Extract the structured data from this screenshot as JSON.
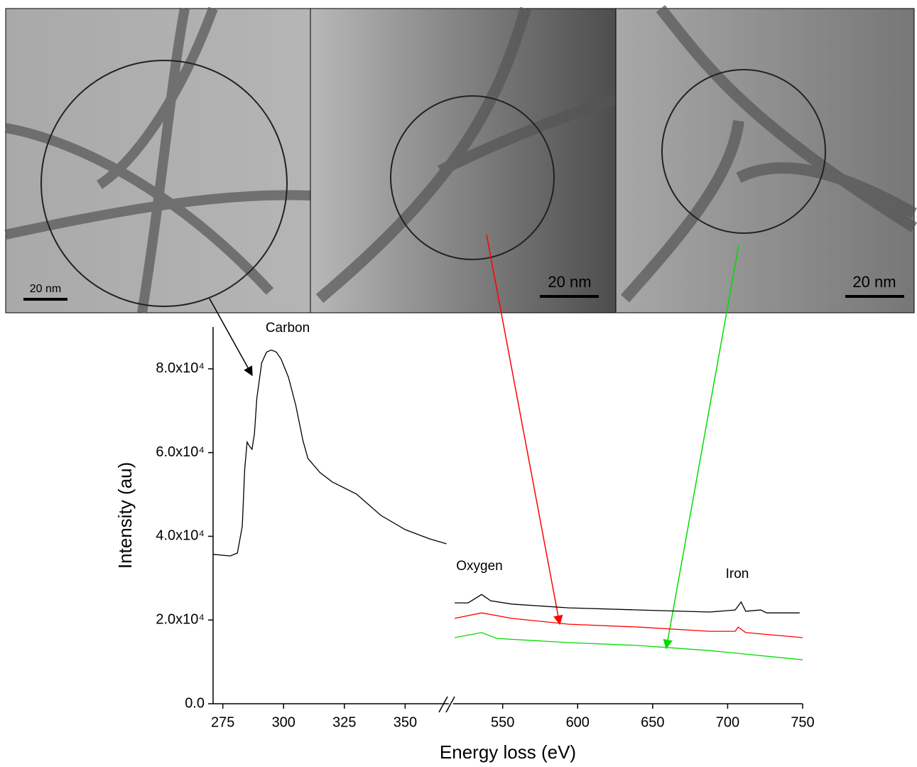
{
  "images": [
    {
      "scale_bar": "20 nm"
    },
    {
      "scale_bar": "20 nm"
    },
    {
      "scale_bar": "20 nm"
    }
  ],
  "chart_data": {
    "type": "line",
    "x_label": "Energy loss (eV)",
    "y_label": "Intensity (au)",
    "annotations": [
      "Carbon",
      "Oxygen",
      "Iron"
    ],
    "x_segments": [
      {
        "xlim": [
          271,
          368
        ],
        "xticks": [
          275,
          300,
          325,
          350
        ]
      },
      {
        "xlim": [
          517,
          750
        ],
        "xticks": [
          550,
          600,
          650,
          700,
          750
        ]
      }
    ],
    "ylim": [
      0,
      90000
    ],
    "yticks": [
      {
        "value": 0,
        "label": "0.0"
      },
      {
        "value": 20000,
        "label": "2.0x10⁴"
      },
      {
        "value": 40000,
        "label": "4.0x10⁴"
      },
      {
        "value": 60000,
        "label": "6.0x10⁴"
      },
      {
        "value": 80000,
        "label": "8.0x10⁴"
      }
    ],
    "series": [
      {
        "color": "#000000",
        "x": [
          271,
          278,
          281,
          283,
          284,
          285,
          286,
          287,
          288,
          289,
          291,
          293,
          295,
          297,
          299,
          302,
          305,
          308,
          310,
          315,
          320,
          330,
          340,
          350,
          360,
          367
        ],
        "values": [
          35700,
          35300,
          36000,
          42400,
          56000,
          62500,
          61500,
          60800,
          64500,
          73000,
          81500,
          84000,
          84500,
          84000,
          82300,
          78000,
          71300,
          62800,
          58600,
          55200,
          53000,
          50100,
          45000,
          41600,
          39400,
          38200
        ]
      },
      {
        "color": "#000000",
        "x": [
          518,
          527,
          536,
          542,
          556,
          594,
          641,
          688,
          705,
          709,
          712,
          722,
          726,
          748
        ],
        "values": [
          24100,
          24100,
          26100,
          24600,
          23800,
          22900,
          22400,
          21900,
          22400,
          24300,
          22100,
          22400,
          21700,
          21700
        ]
      },
      {
        "color": "#ff0000",
        "x": [
          518,
          536,
          556,
          594,
          641,
          688,
          705,
          707,
          712,
          750
        ],
        "values": [
          20400,
          21700,
          20400,
          19000,
          18300,
          17300,
          17300,
          18300,
          17000,
          15800
        ]
      },
      {
        "color": "#00dd00",
        "x": [
          518,
          536,
          546,
          594,
          641,
          688,
          750
        ],
        "values": [
          15800,
          17000,
          15600,
          14600,
          13900,
          12700,
          10500
        ]
      }
    ]
  }
}
